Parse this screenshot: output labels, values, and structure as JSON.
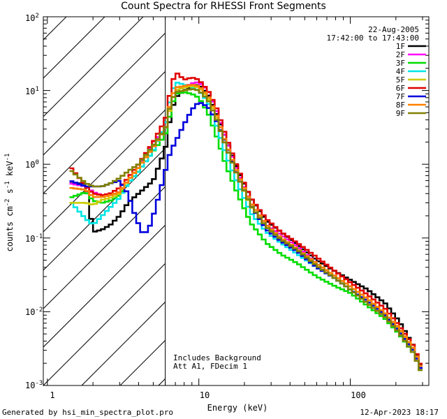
{
  "chart_data": {
    "type": "line",
    "title": "Count Spectra for RHESSI Front Segments",
    "xlabel": "Energy (keV)",
    "ylabel": "counts cm^-2 s^-1 keV^-1",
    "xscale": "log",
    "yscale": "log",
    "xlim": [
      1,
      300
    ],
    "ylim": [
      0.001,
      100
    ],
    "x_tick_labels": [
      "1",
      "10",
      "100"
    ],
    "y_tick_labels": [
      "10^-3",
      "10^-2",
      "10^-1",
      "10^0",
      "10^1",
      "10^2"
    ],
    "attenuator_boundary_keV": 6.0,
    "date": "22-Aug-2005",
    "time_range": "17:42:00 to 17:43:00",
    "annotations": [
      "Includes Background",
      "Att A1, FDecim 1"
    ],
    "series": [
      {
        "name": "1F",
        "color": "#000000",
        "points": [
          [
            1.4,
            0.55
          ],
          [
            1.8,
            0.55
          ],
          [
            2.0,
            0.12
          ],
          [
            2.3,
            0.13
          ],
          [
            2.6,
            0.15
          ],
          [
            3.0,
            0.2
          ],
          [
            3.4,
            0.3
          ],
          [
            4.0,
            0.4
          ],
          [
            5.0,
            0.6
          ],
          [
            6.0,
            1.6
          ],
          [
            6.5,
            4.5
          ],
          [
            7.0,
            8.0
          ],
          [
            8.0,
            10.0
          ],
          [
            9.0,
            11.5
          ],
          [
            10.0,
            12.0
          ],
          [
            11.5,
            9.0
          ],
          [
            13.0,
            5.0
          ],
          [
            15.0,
            2.3
          ],
          [
            18.0,
            0.85
          ],
          [
            22.0,
            0.35
          ],
          [
            28.0,
            0.17
          ],
          [
            35.0,
            0.12
          ],
          [
            45.0,
            0.08
          ],
          [
            60.0,
            0.05
          ],
          [
            80.0,
            0.035
          ],
          [
            100.0,
            0.027
          ],
          [
            130.0,
            0.02
          ],
          [
            170.0,
            0.013
          ],
          [
            210.0,
            0.0075
          ],
          [
            260.0,
            0.0035
          ],
          [
            300.0,
            0.0016
          ]
        ]
      },
      {
        "name": "2F",
        "color": "#ff00ff",
        "points": [
          [
            1.4,
            0.55
          ],
          [
            1.8,
            0.5
          ],
          [
            2.0,
            0.42
          ],
          [
            2.3,
            0.38
          ],
          [
            2.6,
            0.38
          ],
          [
            3.0,
            0.42
          ],
          [
            3.4,
            0.6
          ],
          [
            4.0,
            0.9
          ],
          [
            5.0,
            2.0
          ],
          [
            6.0,
            3.0
          ],
          [
            6.5,
            6.0
          ],
          [
            7.0,
            10.0
          ],
          [
            8.0,
            11.0
          ],
          [
            9.0,
            12.5
          ],
          [
            10.0,
            13.0
          ],
          [
            11.5,
            10.0
          ],
          [
            13.0,
            5.5
          ],
          [
            15.0,
            2.3
          ],
          [
            18.0,
            0.8
          ],
          [
            22.0,
            0.3
          ],
          [
            28.0,
            0.15
          ],
          [
            35.0,
            0.11
          ],
          [
            45.0,
            0.075
          ],
          [
            60.0,
            0.045
          ],
          [
            80.0,
            0.03
          ],
          [
            100.0,
            0.022
          ],
          [
            130.0,
            0.015
          ],
          [
            170.0,
            0.0095
          ],
          [
            210.0,
            0.006
          ],
          [
            260.0,
            0.003
          ],
          [
            300.0,
            0.0015
          ]
        ]
      },
      {
        "name": "3F",
        "color": "#00dd00",
        "points": [
          [
            1.4,
            0.35
          ],
          [
            1.8,
            0.42
          ],
          [
            2.0,
            0.32
          ],
          [
            2.3,
            0.3
          ],
          [
            2.6,
            0.32
          ],
          [
            3.0,
            0.38
          ],
          [
            3.4,
            0.55
          ],
          [
            4.0,
            0.8
          ],
          [
            5.0,
            1.5
          ],
          [
            6.0,
            2.5
          ],
          [
            6.5,
            5.0
          ],
          [
            7.0,
            9.0
          ],
          [
            8.0,
            9.5
          ],
          [
            9.0,
            9.0
          ],
          [
            10.0,
            8.0
          ],
          [
            11.5,
            5.0
          ],
          [
            13.0,
            2.5
          ],
          [
            15.0,
            1.0
          ],
          [
            18.0,
            0.4
          ],
          [
            22.0,
            0.16
          ],
          [
            28.0,
            0.085
          ],
          [
            35.0,
            0.06
          ],
          [
            45.0,
            0.045
          ],
          [
            60.0,
            0.03
          ],
          [
            80.0,
            0.022
          ],
          [
            100.0,
            0.018
          ],
          [
            130.0,
            0.012
          ],
          [
            170.0,
            0.008
          ],
          [
            210.0,
            0.005
          ],
          [
            260.0,
            0.0028
          ],
          [
            300.0,
            0.0014
          ]
        ]
      },
      {
        "name": "4F",
        "color": "#00e5e5",
        "points": [
          [
            1.4,
            0.32
          ],
          [
            1.8,
            0.18
          ],
          [
            2.0,
            0.15
          ],
          [
            2.3,
            0.2
          ],
          [
            2.6,
            0.26
          ],
          [
            3.0,
            0.35
          ],
          [
            3.4,
            0.55
          ],
          [
            4.0,
            0.8
          ],
          [
            5.0,
            1.5
          ],
          [
            6.0,
            3.5
          ],
          [
            6.5,
            8.0
          ],
          [
            7.0,
            13.0
          ],
          [
            8.0,
            12.0
          ],
          [
            9.0,
            11.0
          ],
          [
            10.0,
            10.0
          ],
          [
            11.5,
            7.0
          ],
          [
            13.0,
            3.5
          ],
          [
            15.0,
            1.4
          ],
          [
            18.0,
            0.55
          ],
          [
            22.0,
            0.22
          ],
          [
            28.0,
            0.12
          ],
          [
            35.0,
            0.085
          ],
          [
            45.0,
            0.06
          ],
          [
            60.0,
            0.04
          ],
          [
            80.0,
            0.028
          ],
          [
            100.0,
            0.02
          ],
          [
            130.0,
            0.014
          ],
          [
            170.0,
            0.009
          ],
          [
            210.0,
            0.0055
          ],
          [
            260.0,
            0.003
          ],
          [
            300.0,
            0.0015
          ]
        ]
      },
      {
        "name": "5F",
        "color": "#cccc00",
        "points": [
          [
            1.4,
            0.3
          ],
          [
            1.8,
            0.3
          ],
          [
            2.0,
            0.28
          ],
          [
            2.3,
            0.33
          ],
          [
            2.6,
            0.35
          ],
          [
            3.0,
            0.4
          ],
          [
            3.4,
            0.6
          ],
          [
            4.0,
            0.9
          ],
          [
            5.0,
            1.8
          ],
          [
            6.0,
            3.0
          ],
          [
            6.5,
            6.0
          ],
          [
            7.0,
            10.0
          ],
          [
            8.0,
            11.0
          ],
          [
            9.0,
            11.5
          ],
          [
            10.0,
            11.0
          ],
          [
            11.5,
            8.0
          ],
          [
            13.0,
            4.5
          ],
          [
            15.0,
            1.8
          ],
          [
            18.0,
            0.7
          ],
          [
            22.0,
            0.27
          ],
          [
            28.0,
            0.14
          ],
          [
            35.0,
            0.1
          ],
          [
            45.0,
            0.07
          ],
          [
            60.0,
            0.045
          ],
          [
            80.0,
            0.03
          ],
          [
            100.0,
            0.022
          ],
          [
            130.0,
            0.015
          ],
          [
            170.0,
            0.0095
          ],
          [
            210.0,
            0.0058
          ],
          [
            260.0,
            0.0032
          ],
          [
            300.0,
            0.0016
          ]
        ]
      },
      {
        "name": "6F",
        "color": "#e00000",
        "points": [
          [
            1.4,
            0.95
          ],
          [
            1.8,
            0.5
          ],
          [
            2.0,
            0.4
          ],
          [
            2.3,
            0.38
          ],
          [
            2.6,
            0.4
          ],
          [
            3.0,
            0.48
          ],
          [
            3.4,
            0.65
          ],
          [
            4.0,
            1.0
          ],
          [
            5.0,
            2.0
          ],
          [
            6.0,
            4.0
          ],
          [
            6.5,
            10.0
          ],
          [
            7.0,
            18.0
          ],
          [
            8.0,
            14.0
          ],
          [
            9.0,
            15.0
          ],
          [
            10.0,
            14.0
          ],
          [
            11.5,
            10.0
          ],
          [
            13.0,
            6.0
          ],
          [
            15.0,
            2.5
          ],
          [
            18.0,
            0.9
          ],
          [
            22.0,
            0.35
          ],
          [
            28.0,
            0.18
          ],
          [
            35.0,
            0.12
          ],
          [
            45.0,
            0.085
          ],
          [
            60.0,
            0.055
          ],
          [
            80.0,
            0.035
          ],
          [
            100.0,
            0.025
          ],
          [
            130.0,
            0.017
          ],
          [
            170.0,
            0.011
          ],
          [
            210.0,
            0.0065
          ],
          [
            260.0,
            0.0035
          ],
          [
            300.0,
            0.0017
          ]
        ]
      },
      {
        "name": "7F",
        "color": "#0000dd",
        "points": [
          [
            1.4,
            0.6
          ],
          [
            1.8,
            0.5
          ],
          [
            2.0,
            0.5
          ],
          [
            2.3,
            0.5
          ],
          [
            2.6,
            0.55
          ],
          [
            3.0,
            0.6
          ],
          [
            3.4,
            0.4
          ],
          [
            3.8,
            0.2
          ],
          [
            4.2,
            0.12
          ],
          [
            4.6,
            0.12
          ],
          [
            5.0,
            0.2
          ],
          [
            5.5,
            0.4
          ],
          [
            6.0,
            0.8
          ],
          [
            6.5,
            1.5
          ],
          [
            7.0,
            2.0
          ],
          [
            8.0,
            3.5
          ],
          [
            9.0,
            5.5
          ],
          [
            10.0,
            7.0
          ],
          [
            11.5,
            6.0
          ],
          [
            13.0,
            4.0
          ],
          [
            15.0,
            2.0
          ],
          [
            18.0,
            0.7
          ],
          [
            22.0,
            0.28
          ],
          [
            28.0,
            0.13
          ],
          [
            35.0,
            0.09
          ],
          [
            45.0,
            0.065
          ],
          [
            60.0,
            0.04
          ],
          [
            80.0,
            0.028
          ],
          [
            100.0,
            0.02
          ],
          [
            130.0,
            0.014
          ],
          [
            170.0,
            0.009
          ],
          [
            210.0,
            0.0055
          ],
          [
            260.0,
            0.003
          ],
          [
            300.0,
            0.0015
          ]
        ]
      },
      {
        "name": "8F",
        "color": "#ff8000",
        "points": [
          [
            1.4,
            0.48
          ],
          [
            1.8,
            0.45
          ],
          [
            2.0,
            0.36
          ],
          [
            2.3,
            0.36
          ],
          [
            2.6,
            0.38
          ],
          [
            3.0,
            0.42
          ],
          [
            3.4,
            0.6
          ],
          [
            4.0,
            0.9
          ],
          [
            5.0,
            1.7
          ],
          [
            6.0,
            3.0
          ],
          [
            6.5,
            7.0
          ],
          [
            7.0,
            11.0
          ],
          [
            8.0,
            11.5
          ],
          [
            9.0,
            12.0
          ],
          [
            10.0,
            11.5
          ],
          [
            11.5,
            8.5
          ],
          [
            13.0,
            4.8
          ],
          [
            15.0,
            2.0
          ],
          [
            18.0,
            0.75
          ],
          [
            22.0,
            0.3
          ],
          [
            28.0,
            0.15
          ],
          [
            35.0,
            0.1
          ],
          [
            45.0,
            0.07
          ],
          [
            60.0,
            0.045
          ],
          [
            80.0,
            0.03
          ],
          [
            100.0,
            0.022
          ],
          [
            130.0,
            0.015
          ],
          [
            170.0,
            0.0095
          ],
          [
            210.0,
            0.006
          ],
          [
            260.0,
            0.0032
          ],
          [
            300.0,
            0.0016
          ]
        ]
      },
      {
        "name": "9F",
        "color": "#808000",
        "points": [
          [
            1.4,
            0.85
          ],
          [
            1.8,
            0.55
          ],
          [
            2.0,
            0.5
          ],
          [
            2.3,
            0.5
          ],
          [
            2.6,
            0.55
          ],
          [
            3.0,
            0.65
          ],
          [
            3.4,
            0.8
          ],
          [
            4.0,
            1.0
          ],
          [
            5.0,
            1.8
          ],
          [
            6.0,
            3.0
          ],
          [
            6.5,
            6.5
          ],
          [
            7.0,
            9.5
          ],
          [
            8.0,
            10.0
          ],
          [
            9.0,
            10.5
          ],
          [
            10.0,
            10.0
          ],
          [
            11.5,
            7.5
          ],
          [
            13.0,
            4.2
          ],
          [
            15.0,
            1.8
          ],
          [
            18.0,
            0.7
          ],
          [
            22.0,
            0.28
          ],
          [
            28.0,
            0.14
          ],
          [
            35.0,
            0.095
          ],
          [
            45.0,
            0.068
          ],
          [
            60.0,
            0.042
          ],
          [
            80.0,
            0.028
          ],
          [
            100.0,
            0.02
          ],
          [
            130.0,
            0.013
          ],
          [
            170.0,
            0.0085
          ],
          [
            210.0,
            0.0052
          ],
          [
            260.0,
            0.0028
          ],
          [
            300.0,
            0.0014
          ]
        ]
      }
    ]
  },
  "footer": {
    "generated_by": "Generated by hsi_min_spectra_plot.pro",
    "timestamp": "12-Apr-2023 18:17"
  }
}
